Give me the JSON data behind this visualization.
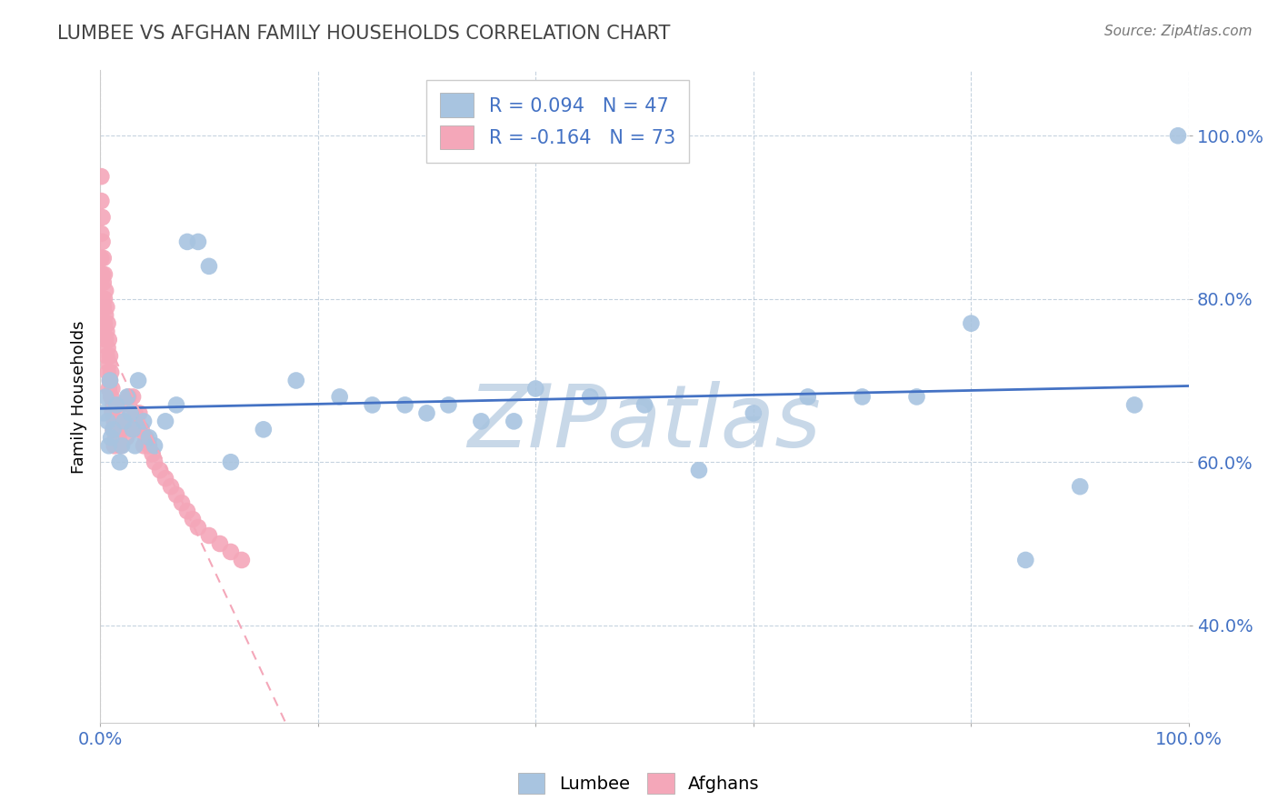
{
  "title": "LUMBEE VS AFGHAN FAMILY HOUSEHOLDS CORRELATION CHART",
  "source": "Source: ZipAtlas.com",
  "ylabel": "Family Households",
  "xlim": [
    0.0,
    1.0
  ],
  "ylim": [
    0.28,
    1.08
  ],
  "yticks": [
    0.4,
    0.6,
    0.8,
    1.0
  ],
  "ytick_labels": [
    "40.0%",
    "60.0%",
    "80.0%",
    "100.0%"
  ],
  "xticks": [
    0.0,
    0.2,
    0.4,
    0.6,
    0.8,
    1.0
  ],
  "xtick_labels": [
    "0.0%",
    "",
    "",
    "",
    "",
    "100.0%"
  ],
  "lumbee_R": 0.094,
  "lumbee_N": 47,
  "afghan_R": -0.164,
  "afghan_N": 73,
  "lumbee_color": "#a8c4e0",
  "afghan_color": "#f4a7b9",
  "lumbee_line_color": "#4472c4",
  "afghan_line_color": "#f4a7b9",
  "watermark": "ZIPatlas",
  "watermark_color": "#c8d8e8",
  "background_color": "#ffffff",
  "lumbee_x": [
    0.003,
    0.005,
    0.007,
    0.008,
    0.009,
    0.01,
    0.012,
    0.015,
    0.018,
    0.02,
    0.022,
    0.025,
    0.028,
    0.03,
    0.032,
    0.035,
    0.04,
    0.045,
    0.05,
    0.06,
    0.07,
    0.08,
    0.09,
    0.1,
    0.12,
    0.15,
    0.18,
    0.22,
    0.25,
    0.28,
    0.3,
    0.32,
    0.35,
    0.38,
    0.4,
    0.45,
    0.5,
    0.55,
    0.6,
    0.65,
    0.7,
    0.75,
    0.8,
    0.85,
    0.9,
    0.95,
    0.99
  ],
  "lumbee_y": [
    0.66,
    0.68,
    0.65,
    0.62,
    0.7,
    0.63,
    0.64,
    0.67,
    0.6,
    0.62,
    0.65,
    0.68,
    0.66,
    0.64,
    0.62,
    0.7,
    0.65,
    0.63,
    0.62,
    0.65,
    0.67,
    0.87,
    0.87,
    0.84,
    0.6,
    0.64,
    0.7,
    0.68,
    0.67,
    0.67,
    0.66,
    0.67,
    0.65,
    0.65,
    0.69,
    0.68,
    0.67,
    0.59,
    0.66,
    0.68,
    0.68,
    0.68,
    0.77,
    0.48,
    0.57,
    0.67,
    1.0
  ],
  "afghan_x": [
    0.001,
    0.001,
    0.001,
    0.001,
    0.001,
    0.002,
    0.002,
    0.002,
    0.002,
    0.002,
    0.003,
    0.003,
    0.003,
    0.003,
    0.004,
    0.004,
    0.004,
    0.005,
    0.005,
    0.005,
    0.006,
    0.006,
    0.006,
    0.007,
    0.007,
    0.007,
    0.008,
    0.008,
    0.008,
    0.009,
    0.009,
    0.01,
    0.01,
    0.011,
    0.011,
    0.012,
    0.012,
    0.013,
    0.013,
    0.014,
    0.015,
    0.015,
    0.016,
    0.017,
    0.018,
    0.019,
    0.02,
    0.022,
    0.024,
    0.026,
    0.028,
    0.03,
    0.032,
    0.034,
    0.036,
    0.038,
    0.04,
    0.042,
    0.045,
    0.048,
    0.05,
    0.055,
    0.06,
    0.065,
    0.07,
    0.075,
    0.08,
    0.085,
    0.09,
    0.1,
    0.11,
    0.12,
    0.13
  ],
  "afghan_y": [
    0.95,
    0.92,
    0.88,
    0.85,
    0.82,
    0.9,
    0.87,
    0.83,
    0.8,
    0.77,
    0.85,
    0.82,
    0.79,
    0.76,
    0.83,
    0.8,
    0.77,
    0.81,
    0.78,
    0.75,
    0.79,
    0.76,
    0.73,
    0.77,
    0.74,
    0.71,
    0.75,
    0.72,
    0.69,
    0.73,
    0.7,
    0.71,
    0.68,
    0.69,
    0.66,
    0.67,
    0.64,
    0.65,
    0.62,
    0.63,
    0.67,
    0.64,
    0.65,
    0.63,
    0.64,
    0.62,
    0.67,
    0.65,
    0.63,
    0.68,
    0.65,
    0.68,
    0.66,
    0.64,
    0.66,
    0.64,
    0.62,
    0.63,
    0.62,
    0.61,
    0.6,
    0.59,
    0.58,
    0.57,
    0.56,
    0.55,
    0.54,
    0.53,
    0.52,
    0.51,
    0.5,
    0.49,
    0.48
  ]
}
